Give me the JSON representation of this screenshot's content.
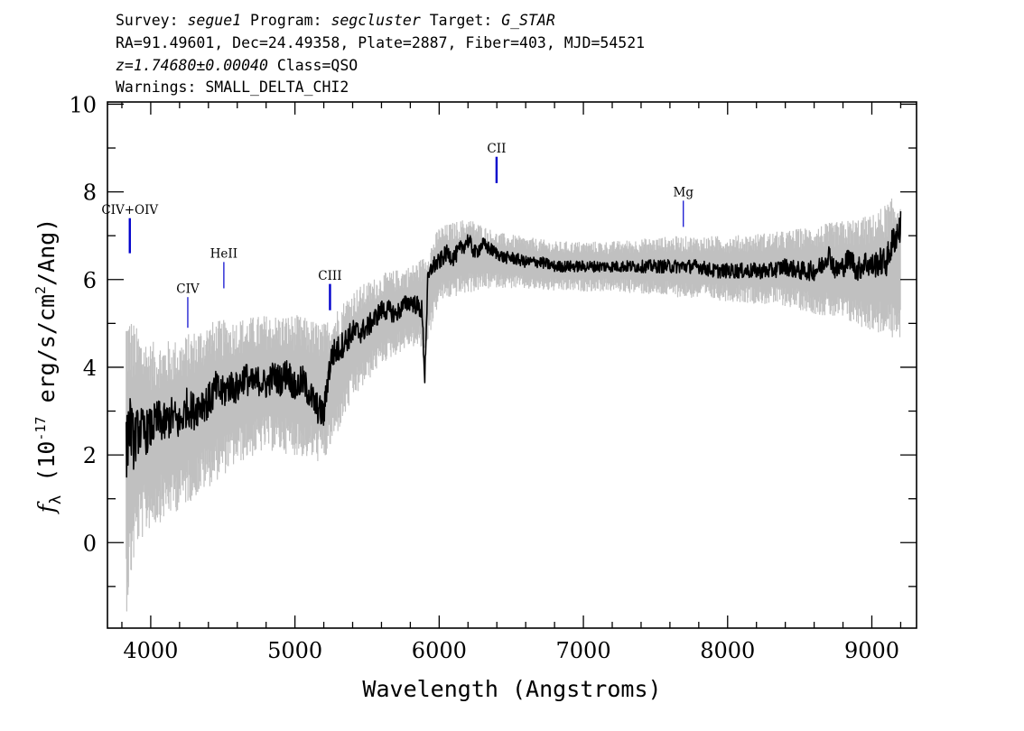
{
  "header": {
    "line1": {
      "survey_label": "Survey: ",
      "survey_value": "segue1",
      "program_label": " Program: ",
      "program_value": "segcluster",
      "target_label": " Target: ",
      "target_value": "G_STAR"
    },
    "line2": "RA=91.49601, Dec=24.49358, Plate=2887, Fiber=403, MJD=54521",
    "line3": {
      "z_value": "z=1.74680±0.00040",
      "class_text": " Class=QSO"
    },
    "line4": "Warnings: SMALL_DELTA_CHI2"
  },
  "chart_data": {
    "type": "line",
    "xlabel": "Wavelength (Angstroms)",
    "ylabel_parts": {
      "symbol": "f",
      "subscript": "λ",
      "unit_prefix": " (10",
      "exponent1": "-17",
      "unit_mid": " erg/s/cm",
      "exponent2": "2",
      "unit_suffix": "/Ang)"
    },
    "xlim": [
      3700,
      9310
    ],
    "ylim": [
      -1.95,
      10.05
    ],
    "x_ticks": [
      4000,
      5000,
      6000,
      7000,
      8000,
      9000
    ],
    "x_tick_labels": [
      "4000",
      "5000",
      "6000",
      "7000",
      "8000",
      "9000"
    ],
    "y_ticks": [
      0,
      2,
      4,
      6,
      8,
      10
    ],
    "y_tick_labels": [
      "0",
      "2",
      "4",
      "6",
      "8",
      "10"
    ],
    "x_minor_step": 200,
    "y_minor_step": 1,
    "grid": false,
    "legend": "none",
    "colors": {
      "flux": "#000000",
      "error_band": "#c0c0c0",
      "emission_marker": "#0000cc"
    },
    "series": [
      {
        "role": "flux",
        "x": [
          3830,
          3850,
          3880,
          3920,
          3960,
          4000,
          4050,
          4100,
          4150,
          4200,
          4250,
          4300,
          4350,
          4400,
          4450,
          4500,
          4550,
          4600,
          4650,
          4700,
          4750,
          4800,
          4850,
          4900,
          4950,
          5000,
          5050,
          5100,
          5150,
          5200,
          5230,
          5260,
          5300,
          5350,
          5400,
          5450,
          5500,
          5550,
          5600,
          5650,
          5700,
          5750,
          5800,
          5850,
          5880,
          5900,
          5920,
          5950,
          6000,
          6050,
          6100,
          6150,
          6200,
          6250,
          6300,
          6350,
          6400,
          6450,
          6500,
          6600,
          6700,
          6800,
          6900,
          7000,
          7100,
          7200,
          7300,
          7400,
          7500,
          7600,
          7700,
          7800,
          7900,
          8000,
          8100,
          8200,
          8300,
          8400,
          8500,
          8600,
          8650,
          8700,
          8750,
          8800,
          8850,
          8900,
          8950,
          9000,
          9050,
          9100,
          9150,
          9200
        ],
        "y": [
          2.0,
          2.8,
          2.3,
          2.6,
          2.5,
          2.6,
          2.8,
          2.7,
          2.9,
          2.7,
          3.1,
          3.0,
          3.2,
          3.2,
          3.5,
          3.4,
          3.6,
          3.5,
          3.8,
          3.6,
          3.7,
          3.6,
          3.8,
          3.7,
          3.9,
          3.5,
          3.7,
          3.4,
          3.1,
          2.9,
          3.8,
          4.3,
          4.4,
          4.6,
          4.8,
          4.8,
          4.9,
          5.1,
          5.3,
          5.3,
          5.2,
          5.4,
          5.5,
          5.4,
          5.3,
          3.8,
          5.9,
          6.3,
          6.4,
          6.6,
          6.5,
          6.7,
          6.9,
          6.6,
          6.8,
          6.7,
          6.6,
          6.5,
          6.5,
          6.4,
          6.4,
          6.3,
          6.3,
          6.3,
          6.3,
          6.3,
          6.3,
          6.3,
          6.3,
          6.3,
          6.3,
          6.3,
          6.2,
          6.2,
          6.2,
          6.2,
          6.2,
          6.3,
          6.2,
          6.2,
          6.3,
          6.6,
          6.2,
          6.3,
          6.5,
          6.2,
          6.4,
          6.3,
          6.4,
          6.4,
          6.9,
          7.2
        ]
      },
      {
        "role": "error_band",
        "x": [
          3830,
          3900,
          4000,
          4200,
          4400,
          4600,
          4800,
          5000,
          5200,
          5400,
          5600,
          5800,
          5900,
          6000,
          6200,
          6400,
          6800,
          7200,
          7600,
          8000,
          8400,
          8800,
          9000,
          9200
        ],
        "upper": [
          5.0,
          4.6,
          4.3,
          4.4,
          4.8,
          4.9,
          5.0,
          5.0,
          4.8,
          5.6,
          6.0,
          6.2,
          6.4,
          7.1,
          7.3,
          7.0,
          6.8,
          6.8,
          6.9,
          6.9,
          7.0,
          7.2,
          7.3,
          7.8
        ],
        "lower": [
          -1.2,
          0.2,
          0.6,
          1.0,
          1.5,
          2.0,
          2.3,
          2.2,
          2.0,
          3.4,
          4.2,
          4.6,
          4.5,
          5.6,
          5.8,
          5.9,
          5.8,
          5.8,
          5.7,
          5.6,
          5.5,
          5.2,
          5.0,
          4.8
        ]
      }
    ],
    "annotations": [
      {
        "label": "CIV+OIV",
        "x": 3855,
        "y_top": 7.4,
        "y_bottom": 6.6,
        "label_y": 7.5,
        "strong": true
      },
      {
        "label": "CIV",
        "x": 4257,
        "y_top": 5.6,
        "y_bottom": 4.9,
        "label_y": 5.7,
        "strong": false
      },
      {
        "label": "HeII",
        "x": 4507,
        "y_top": 6.4,
        "y_bottom": 5.8,
        "label_y": 6.5,
        "strong": false
      },
      {
        "label": "CIII",
        "x": 5243,
        "y_top": 5.9,
        "y_bottom": 5.3,
        "label_y": 6.0,
        "strong": true
      },
      {
        "label": "CII",
        "x": 6398,
        "y_top": 8.8,
        "y_bottom": 8.2,
        "label_y": 8.9,
        "strong": true
      },
      {
        "label": "Mg",
        "x": 7693,
        "y_top": 7.8,
        "y_bottom": 7.2,
        "label_y": 7.9,
        "strong": false
      }
    ]
  }
}
